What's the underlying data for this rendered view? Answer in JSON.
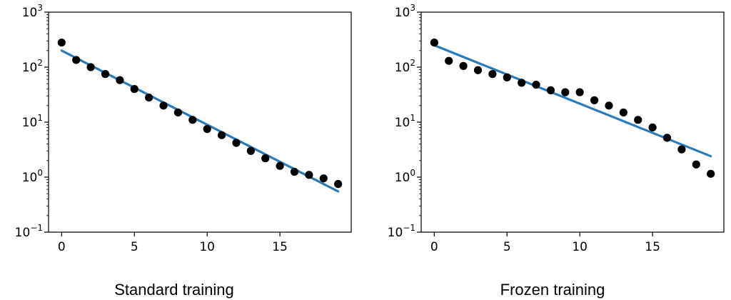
{
  "chart_data": [
    {
      "type": "scatter",
      "caption": "Standard training",
      "title": "",
      "xlabel": "",
      "ylabel": "",
      "xlim": [
        -0.9,
        19.9
      ],
      "ylim": [
        0.1,
        1000
      ],
      "yscale": "log",
      "grid": false,
      "xticks": [
        {
          "value": 0,
          "label": "0"
        },
        {
          "value": 5,
          "label": "5"
        },
        {
          "value": 10,
          "label": "10"
        },
        {
          "value": 15,
          "label": "15"
        }
      ],
      "yticks": [
        {
          "value": 0.1,
          "base": "10",
          "exp": "−1"
        },
        {
          "value": 1,
          "base": "10",
          "exp": "0"
        },
        {
          "value": 10,
          "base": "10",
          "exp": "1"
        },
        {
          "value": 100,
          "base": "10",
          "exp": "2"
        },
        {
          "value": 1000,
          "base": "10",
          "exp": "3"
        }
      ],
      "series": [
        {
          "kind": "points",
          "color": "#000000",
          "x": [
            0,
            1,
            2,
            3,
            4,
            5,
            6,
            7,
            8,
            9,
            10,
            11,
            12,
            13,
            14,
            15,
            16,
            17,
            18,
            19
          ],
          "y": [
            280,
            135,
            100,
            75,
            58,
            40,
            28,
            20,
            15,
            11,
            7.5,
            5.8,
            4.2,
            3.0,
            2.2,
            1.6,
            1.25,
            1.1,
            0.95,
            0.75
          ]
        },
        {
          "kind": "fit-line",
          "color": "#2a7ab9",
          "x": [
            0,
            19
          ],
          "y": [
            200,
            0.55
          ]
        }
      ]
    },
    {
      "type": "scatter",
      "caption": "Frozen training",
      "title": "",
      "xlabel": "",
      "ylabel": "",
      "xlim": [
        -0.9,
        19.9
      ],
      "ylim": [
        0.1,
        1000
      ],
      "yscale": "log",
      "grid": false,
      "xticks": [
        {
          "value": 0,
          "label": "0"
        },
        {
          "value": 5,
          "label": "5"
        },
        {
          "value": 10,
          "label": "10"
        },
        {
          "value": 15,
          "label": "15"
        }
      ],
      "yticks": [
        {
          "value": 0.1,
          "base": "10",
          "exp": "−1"
        },
        {
          "value": 1,
          "base": "10",
          "exp": "0"
        },
        {
          "value": 10,
          "base": "10",
          "exp": "1"
        },
        {
          "value": 100,
          "base": "10",
          "exp": "2"
        },
        {
          "value": 1000,
          "base": "10",
          "exp": "3"
        }
      ],
      "series": [
        {
          "kind": "points",
          "color": "#000000",
          "x": [
            0,
            1,
            2,
            3,
            4,
            5,
            6,
            7,
            8,
            9,
            10,
            11,
            12,
            13,
            14,
            15,
            16,
            17,
            18,
            19
          ],
          "y": [
            280,
            130,
            105,
            88,
            75,
            65,
            52,
            48,
            38,
            35,
            35,
            25,
            20,
            15,
            11,
            8,
            5.2,
            3.2,
            1.7,
            1.15
          ]
        },
        {
          "kind": "fit-line",
          "color": "#2a7ab9",
          "x": [
            0,
            19
          ],
          "y": [
            250,
            2.4
          ]
        }
      ]
    }
  ]
}
